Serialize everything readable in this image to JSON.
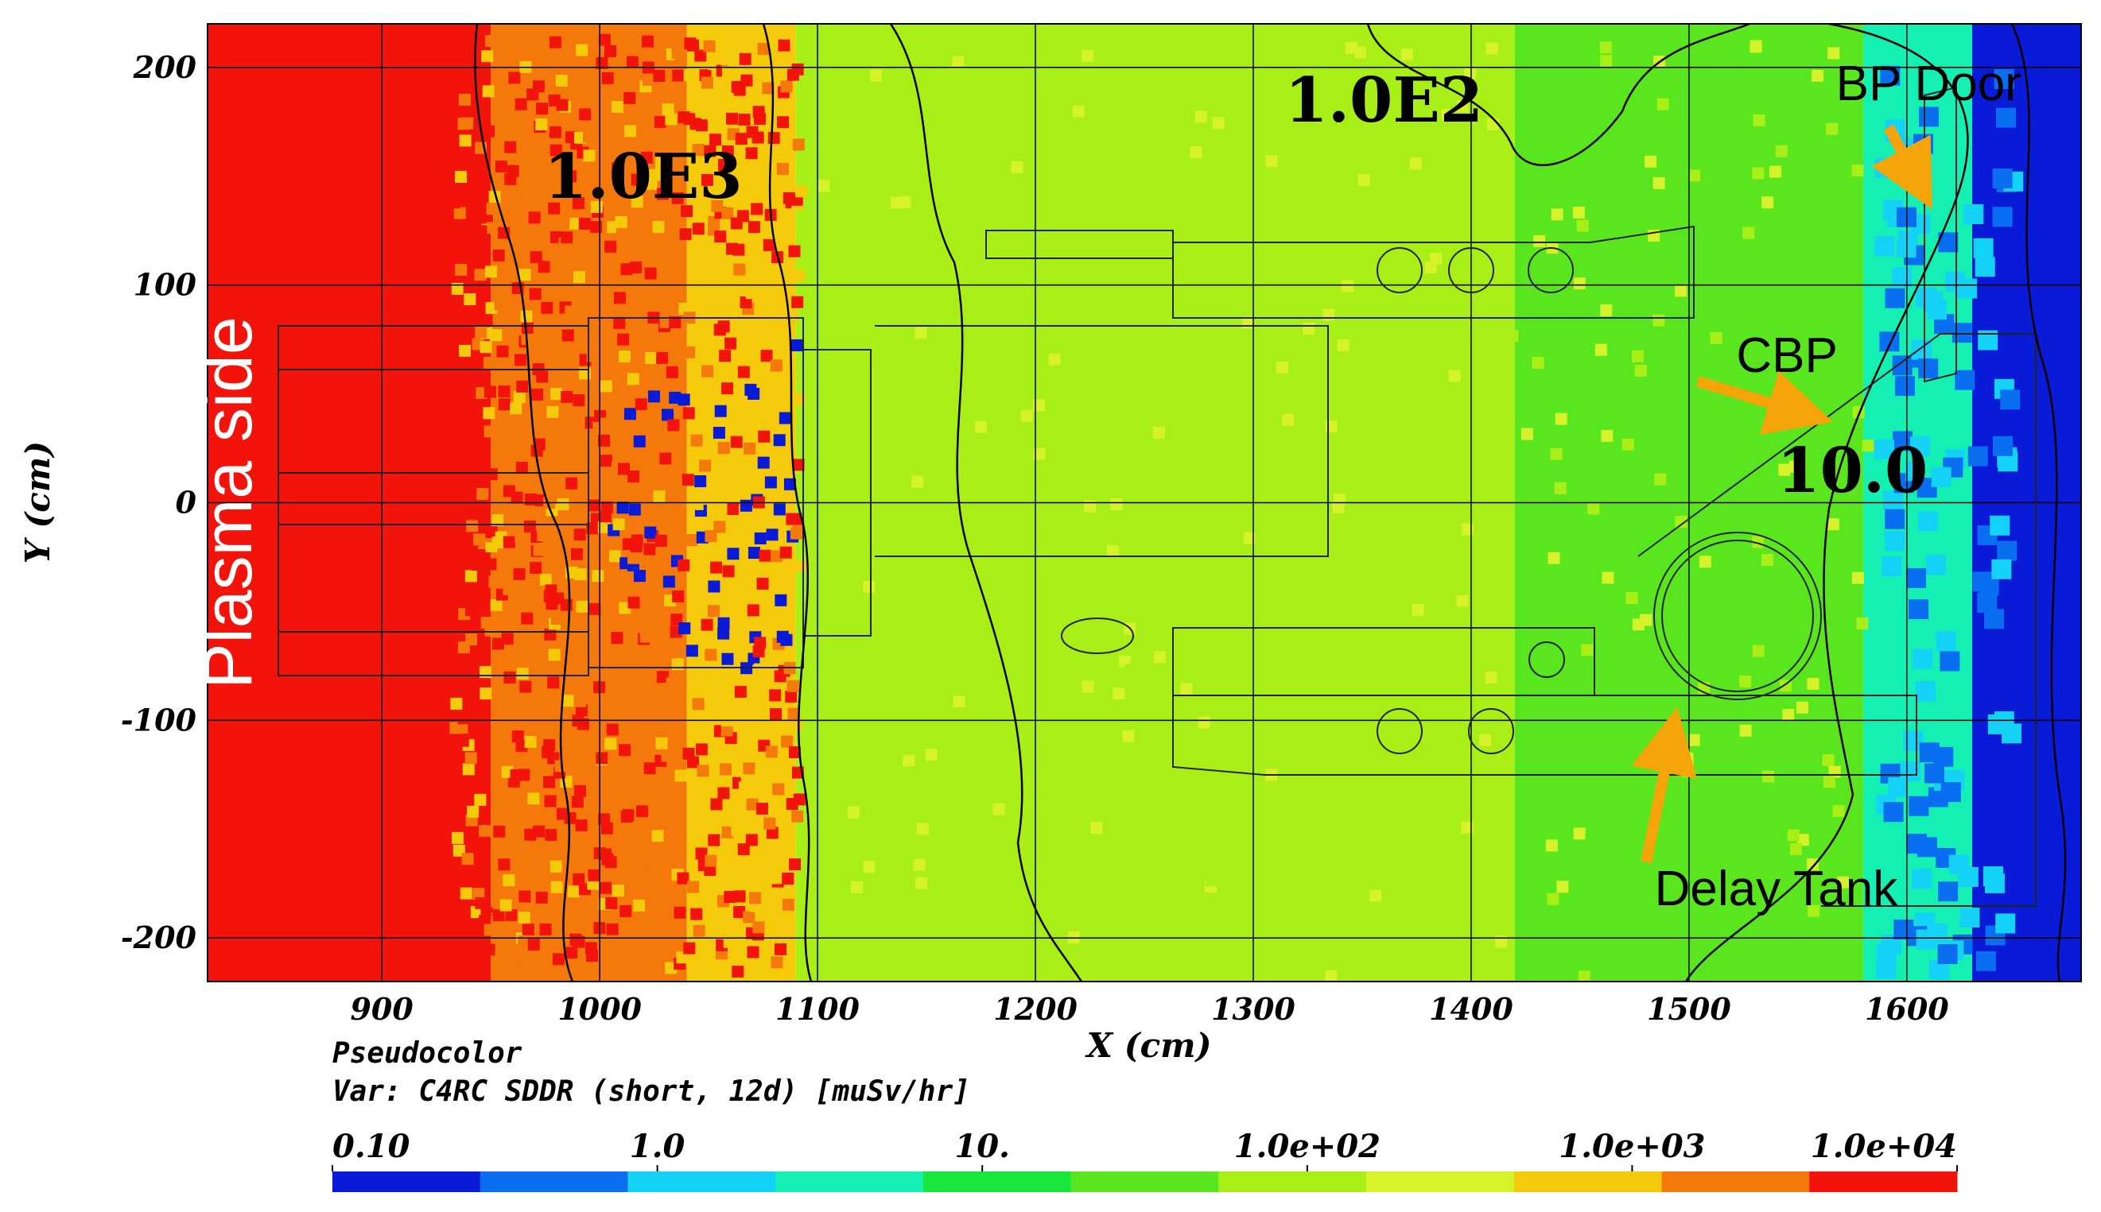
{
  "chart_data": {
    "type": "heatmap",
    "title": "",
    "plot_type_label": "Pseudocolor",
    "variable_label": "Var: C4RC SDDR (short, 12d) [muSv/hr]",
    "xlabel": "X (cm)",
    "ylabel": "Y (cm)",
    "xlim": [
      820,
      1680
    ],
    "ylim": [
      -220,
      220
    ],
    "x_ticks": [
      900,
      1000,
      1100,
      1200,
      1300,
      1400,
      1500,
      1600
    ],
    "y_ticks": [
      200,
      100,
      0,
      -100,
      -200
    ],
    "x_tick_labels": [
      "900",
      "1000",
      "1100",
      "1200",
      "1300",
      "1400",
      "1500",
      "1600"
    ],
    "y_tick_labels": [
      "200",
      "100",
      "0",
      "-100",
      "-200"
    ],
    "grid": true,
    "colorscale": {
      "scale": "log",
      "range": [
        0.1,
        10000
      ],
      "tick_labels": [
        "0.10",
        "1.0",
        "10.",
        "1.0e+02",
        "1.0e+03",
        "1.0e+04"
      ],
      "colors": [
        "#0a1bd8",
        "#0a6ef0",
        "#14d2f5",
        "#14f0b4",
        "#18e63a",
        "#5ae61e",
        "#a8ef18",
        "#d6f22a",
        "#f5ca0a",
        "#f5780a",
        "#f2140a"
      ]
    },
    "dose_regions": [
      {
        "x_range": [
          820,
          950
        ],
        "dose": 10000
      },
      {
        "x_range": [
          950,
          1040
        ],
        "dose": 3000
      },
      {
        "x_range": [
          1040,
          1090
        ],
        "dose": 700
      },
      {
        "x_range": [
          1090,
          1420
        ],
        "dose": 100
      },
      {
        "x_range": [
          1420,
          1580
        ],
        "dose": 40
      },
      {
        "x_range": [
          1580,
          1630
        ],
        "dose": 5
      },
      {
        "x_range": [
          1630,
          1680
        ],
        "dose": 0.2
      }
    ],
    "annotations": [
      {
        "text": "1.0E3",
        "x": 1020,
        "y": 140
      },
      {
        "text": "1.0E2",
        "x": 1360,
        "y": 175
      },
      {
        "text": "10.0",
        "x": 1575,
        "y": 5
      },
      {
        "text": "BP Door",
        "x": 1610,
        "y": 185
      },
      {
        "text": "CBP",
        "x": 1545,
        "y": 60
      },
      {
        "text": "Delay Tank",
        "x": 1540,
        "y": -185
      },
      {
        "text": "Plasma side",
        "x": 840,
        "y": 0
      }
    ]
  }
}
